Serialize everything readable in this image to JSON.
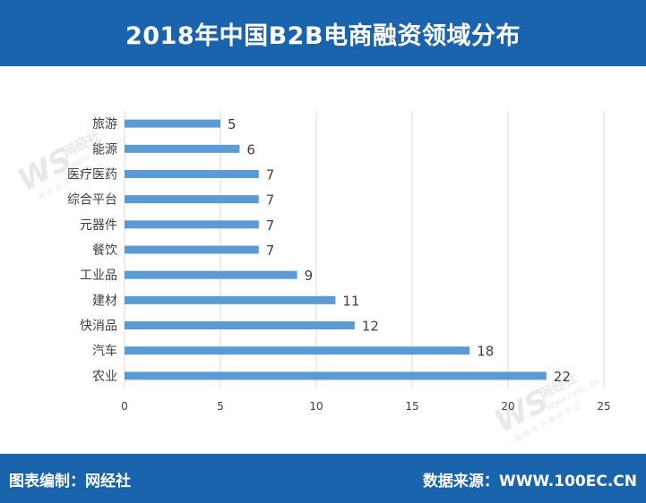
{
  "header": {
    "title": "2018年中国B2B电商融资领域分布"
  },
  "footer": {
    "left": "图表编制：网经社",
    "right": "数据来源：WWW.100EC.CN"
  },
  "watermark": {
    "brand": "网经社",
    "site": "WWW.100EC.CN",
    "tagline": "网 络 经 济 服 务 平 台"
  },
  "colors": {
    "header_bg": "#1a64ad",
    "bar": "#5b9bd5",
    "grid": "#d9d9d9",
    "text": "#404040"
  },
  "chart_data": {
    "type": "bar",
    "orientation": "horizontal",
    "title": "2018年中国B2B电商融资领域分布",
    "categories": [
      "旅游",
      "能源",
      "医疗医药",
      "综合平台",
      "元器件",
      "餐饮",
      "工业品",
      "建材",
      "快消品",
      "汽车",
      "农业"
    ],
    "values": [
      5,
      6,
      7,
      7,
      7,
      7,
      9,
      11,
      12,
      18,
      22
    ],
    "xlim": [
      0,
      25
    ],
    "xticks": [
      0,
      5,
      10,
      15,
      20,
      25
    ],
    "grid": true,
    "data_labels": true
  }
}
